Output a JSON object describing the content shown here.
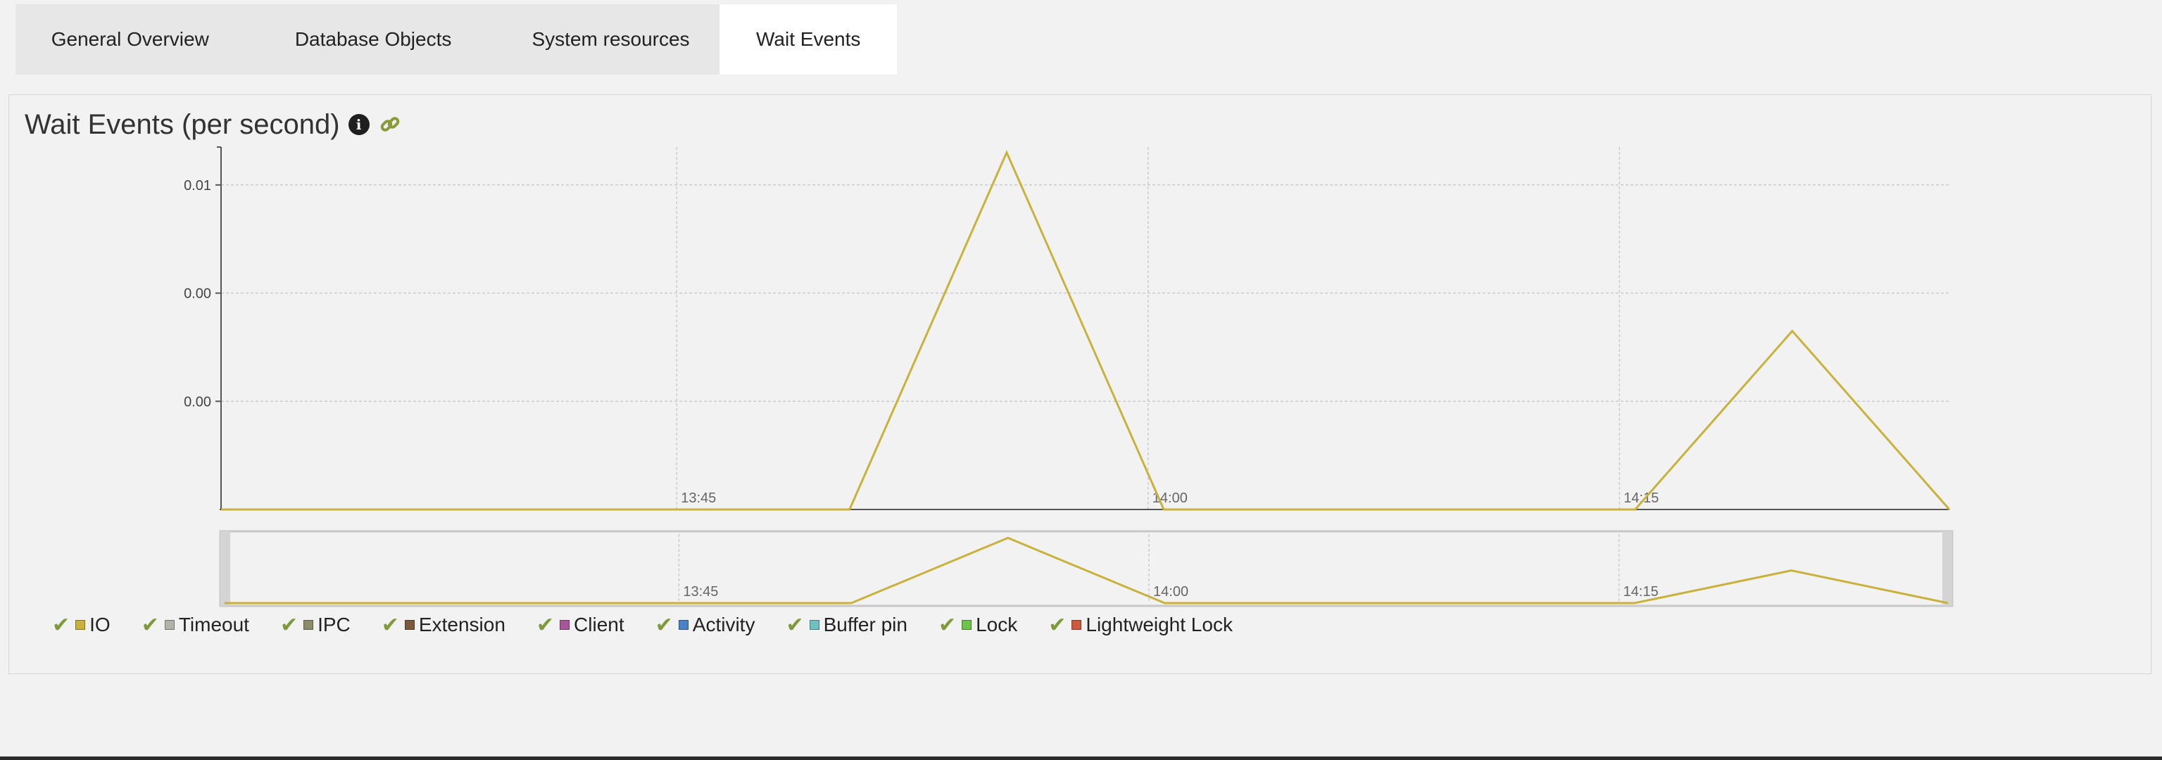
{
  "tabs": [
    {
      "label": "General Overview",
      "active": false
    },
    {
      "label": "Database Objects",
      "active": false
    },
    {
      "label": "System resources",
      "active": false
    },
    {
      "label": "Wait Events",
      "active": true
    }
  ],
  "panel": {
    "title": "Wait Events (per second)",
    "info_icon": "info-icon",
    "link_icon": "link-icon"
  },
  "chart_data": {
    "type": "line",
    "title": "Wait Events (per second)",
    "y_tick_labels": [
      "0.01",
      "0.00",
      "0.00"
    ],
    "x_tick_labels": [
      "13:45",
      "14:00",
      "14:15"
    ],
    "x_range_minutes": [
      0,
      55
    ],
    "x_tick_minutes": [
      14.5,
      29.5,
      44.5
    ],
    "ylim": [
      0,
      0.0134
    ],
    "y_tick_values": [
      0.012,
      0.008,
      0.004
    ],
    "series": [
      {
        "name": "IO",
        "color": "#c9b23c",
        "x_minutes": [
          0,
          20,
          25,
          30,
          45,
          50,
          55
        ],
        "values": [
          0,
          0,
          0.0132,
          0,
          0,
          0.0066,
          0
        ]
      }
    ],
    "navigator": true
  },
  "legend": [
    {
      "label": "IO",
      "color": "#c9b23c",
      "checked": true
    },
    {
      "label": "Timeout",
      "color": "#b2b2a8",
      "checked": true
    },
    {
      "label": "IPC",
      "color": "#8c8c6a",
      "checked": true
    },
    {
      "label": "Extension",
      "color": "#7a5a3a",
      "checked": true
    },
    {
      "label": "Client",
      "color": "#a8559a",
      "checked": true
    },
    {
      "label": "Activity",
      "color": "#4a82c8",
      "checked": true
    },
    {
      "label": "Buffer pin",
      "color": "#6fc1c1",
      "checked": true
    },
    {
      "label": "Lock",
      "color": "#6fc24a",
      "checked": true
    },
    {
      "label": "Lightweight Lock",
      "color": "#d0583c",
      "checked": true
    }
  ],
  "check_glyph": "✔"
}
